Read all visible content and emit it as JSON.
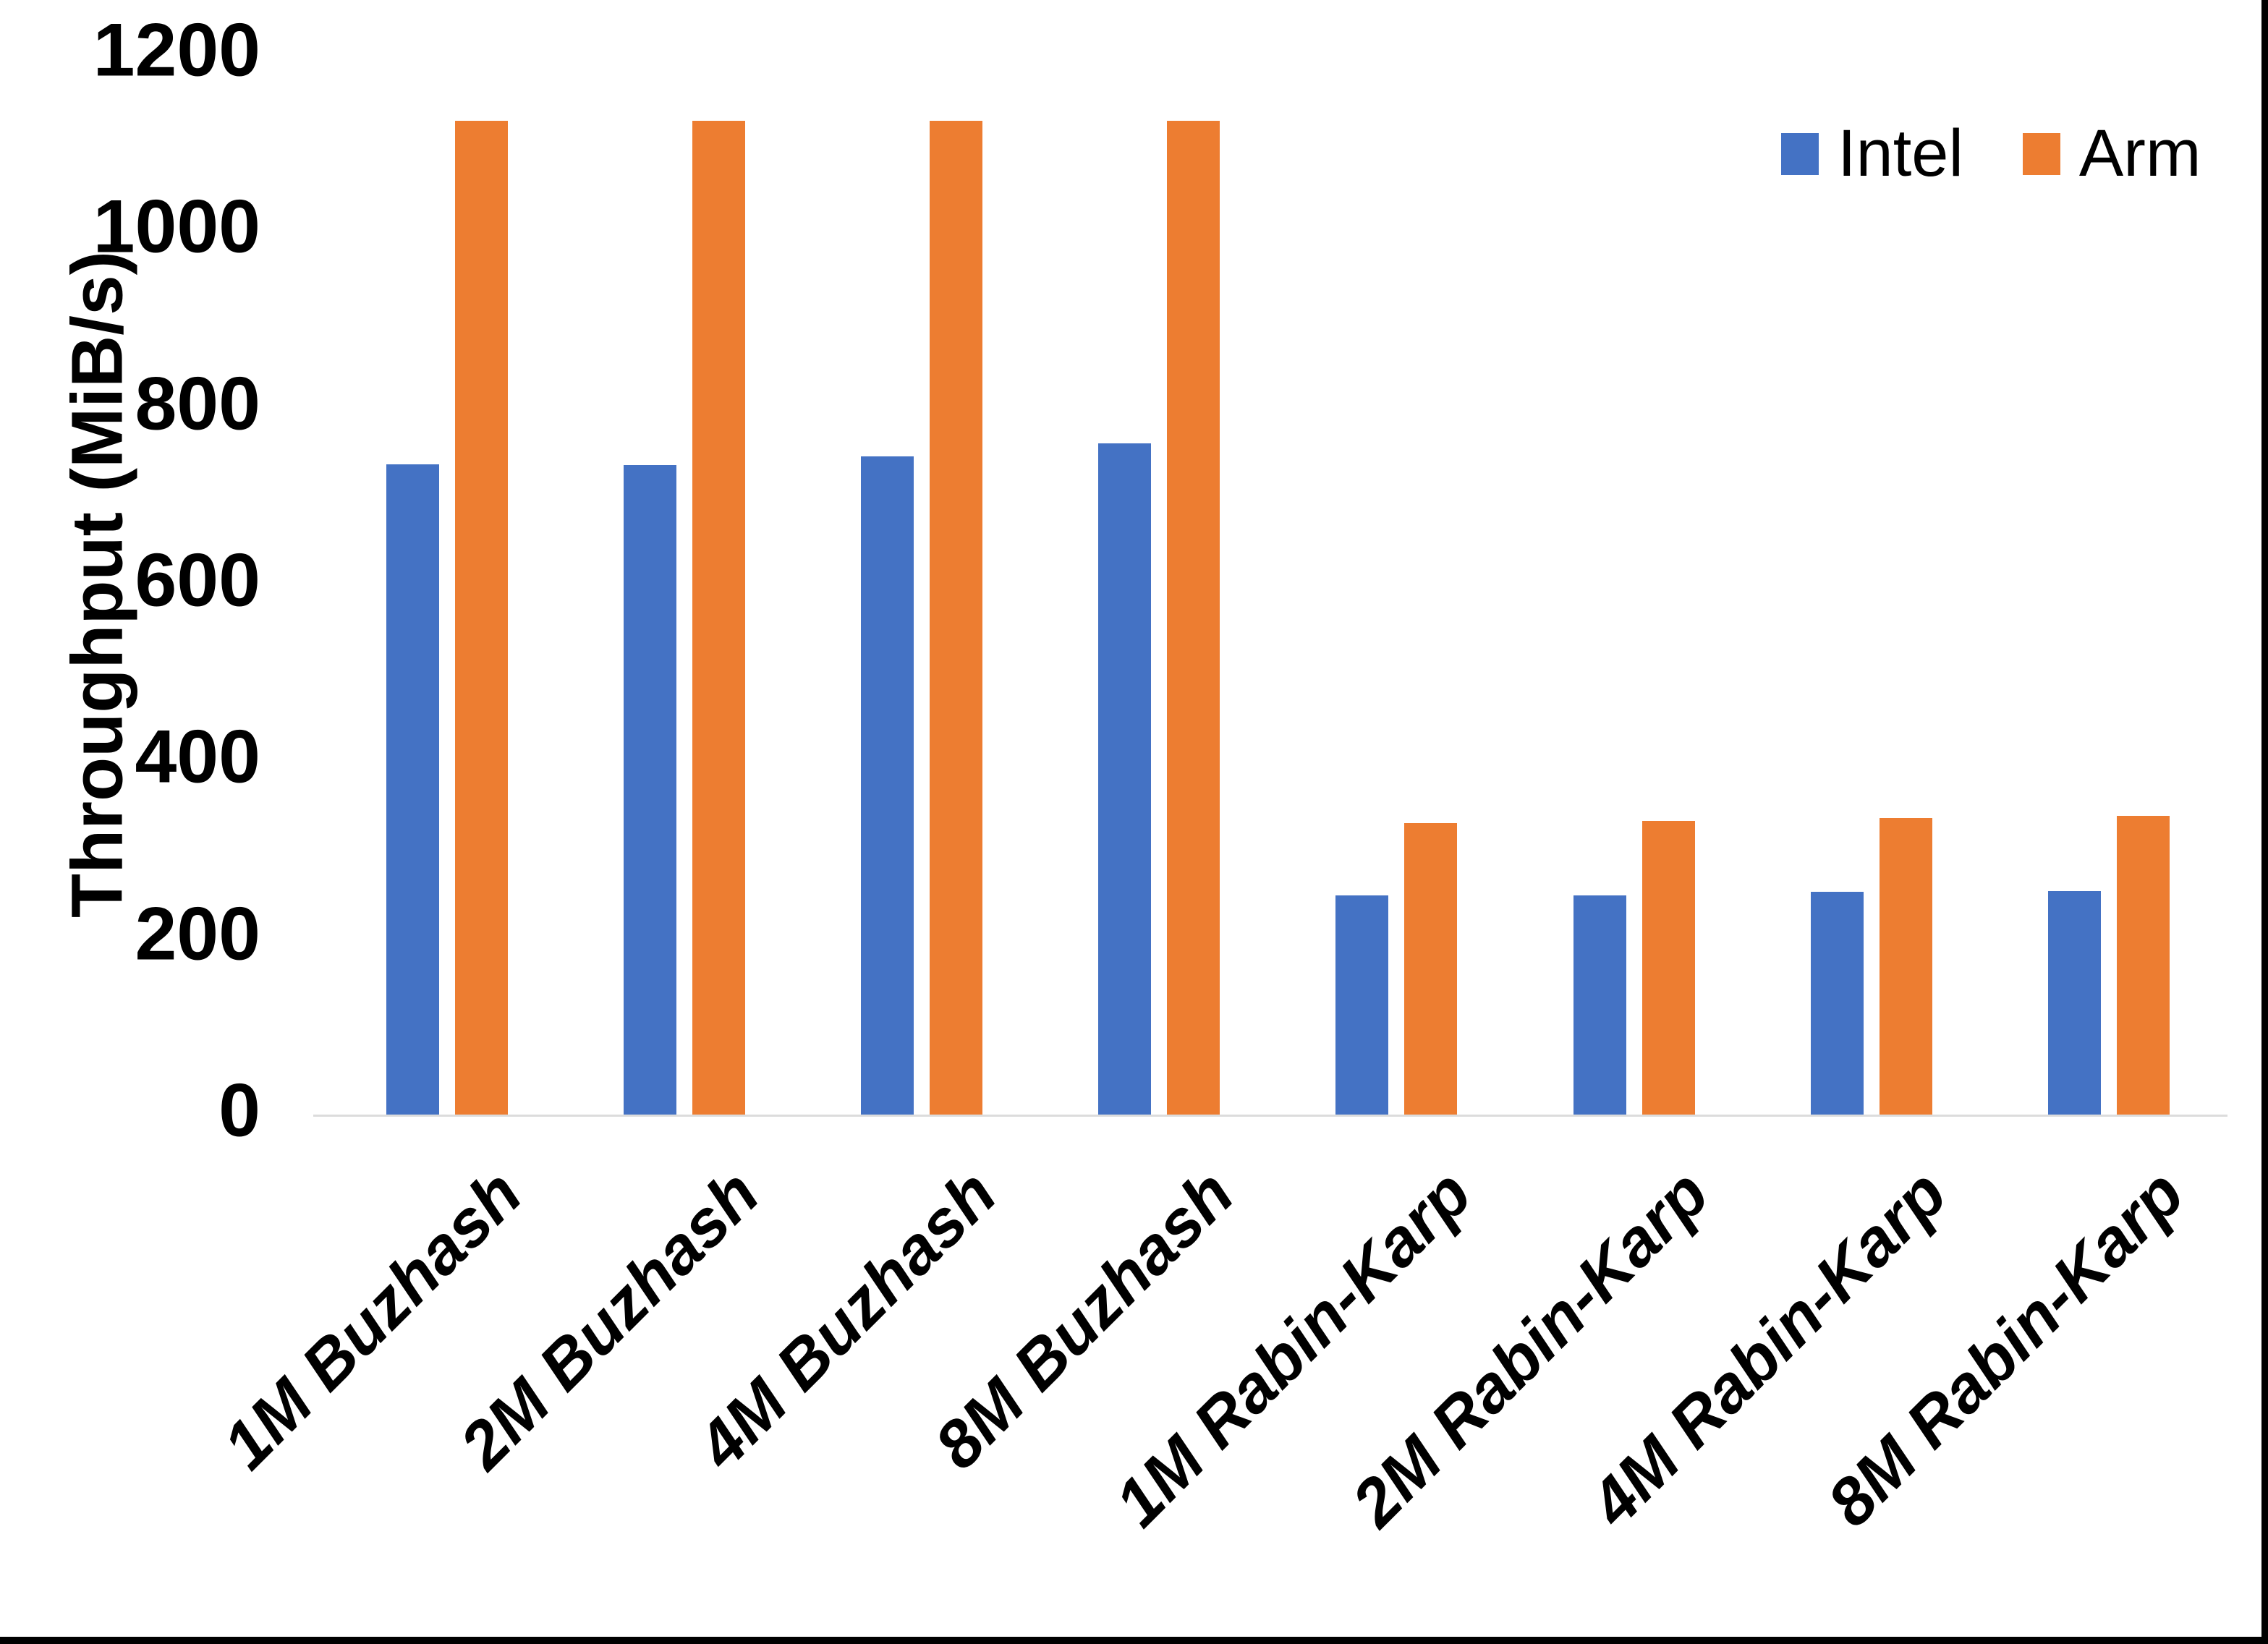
{
  "chart_data": {
    "type": "bar",
    "title": "",
    "xlabel": "",
    "ylabel": "Throughput (MiB/s)",
    "categories": [
      "1M Buzhash",
      "2M Buzhash",
      "4M Buzhash",
      "8M Buzhash",
      "1M Rabin-Karp",
      "2M Rabin-Karp",
      "4M Rabin-Karp",
      "8M Rabin-Karp"
    ],
    "series": [
      {
        "name": "Intel",
        "color": "#4472C4",
        "values": [
          736,
          735,
          745,
          760,
          248,
          248,
          252,
          253
        ]
      },
      {
        "name": "Arm",
        "color": "#ED7D31",
        "values": [
          1125,
          1125,
          1125,
          1125,
          330,
          332,
          336,
          338
        ]
      }
    ],
    "ylim": [
      0,
      1200
    ],
    "yticks": [
      0,
      200,
      400,
      600,
      800,
      1000,
      1200
    ],
    "grid": false,
    "legend_position": "top-right",
    "axis_line_color": "#DCDCDC",
    "page_border_color": "#000000"
  }
}
